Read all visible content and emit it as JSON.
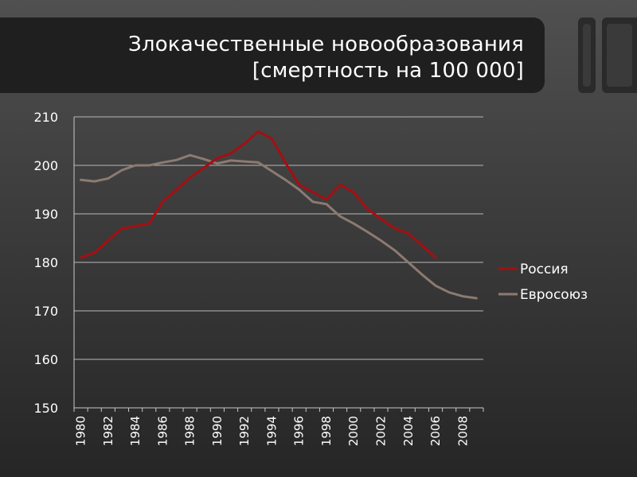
{
  "title": {
    "line1": "Злокачественные новообразования",
    "line2": "[смертность на 100 000]"
  },
  "chart_data": {
    "type": "line",
    "title": "Злокачественные новообразования [смертность на 100 000]",
    "xlabel": "",
    "ylabel": "",
    "ylim": [
      150,
      210
    ],
    "yticks": [
      150,
      160,
      170,
      180,
      190,
      200,
      210
    ],
    "xticks": [
      1980,
      1982,
      1984,
      1986,
      1988,
      1990,
      1992,
      1994,
      1996,
      1998,
      2000,
      2002,
      2004,
      2006,
      2008
    ],
    "grid": true,
    "legend": "right",
    "series": [
      {
        "name": "Россия",
        "color": "#a50f12",
        "x": [
          1980,
          1981,
          1982,
          1983,
          1984,
          1985,
          1986,
          1987,
          1988,
          1989,
          1990,
          1991,
          1992,
          1993,
          1994,
          1995,
          1996,
          1997,
          1998,
          1999,
          2000,
          2001,
          2002,
          2003,
          2004,
          2005,
          2006
        ],
        "values": [
          181,
          182,
          184.5,
          187,
          187.5,
          188,
          192.5,
          195,
          197.5,
          199.5,
          201.5,
          202.5,
          204.5,
          207,
          205.5,
          200.5,
          196,
          194.5,
          193,
          196,
          194.5,
          191,
          189,
          187,
          186,
          183.5,
          181
        ]
      },
      {
        "name": "Евросоюз",
        "color": "#8c7a72",
        "x": [
          1980,
          1981,
          1982,
          1983,
          1984,
          1985,
          1986,
          1987,
          1988,
          1989,
          1990,
          1991,
          1992,
          1993,
          1994,
          1995,
          1996,
          1997,
          1998,
          1999,
          2000,
          2001,
          2002,
          2003,
          2004,
          2005,
          2006,
          2007,
          2008,
          2009
        ],
        "values": [
          197,
          196.7,
          197.3,
          199,
          200,
          200,
          200.6,
          201.1,
          202.1,
          201.3,
          200.4,
          201,
          200.8,
          200.6,
          198.8,
          197,
          195,
          192.5,
          192,
          189.5,
          188,
          186.3,
          184.5,
          182.5,
          180,
          177.5,
          175.2,
          173.8,
          173,
          172.6
        ]
      }
    ]
  }
}
